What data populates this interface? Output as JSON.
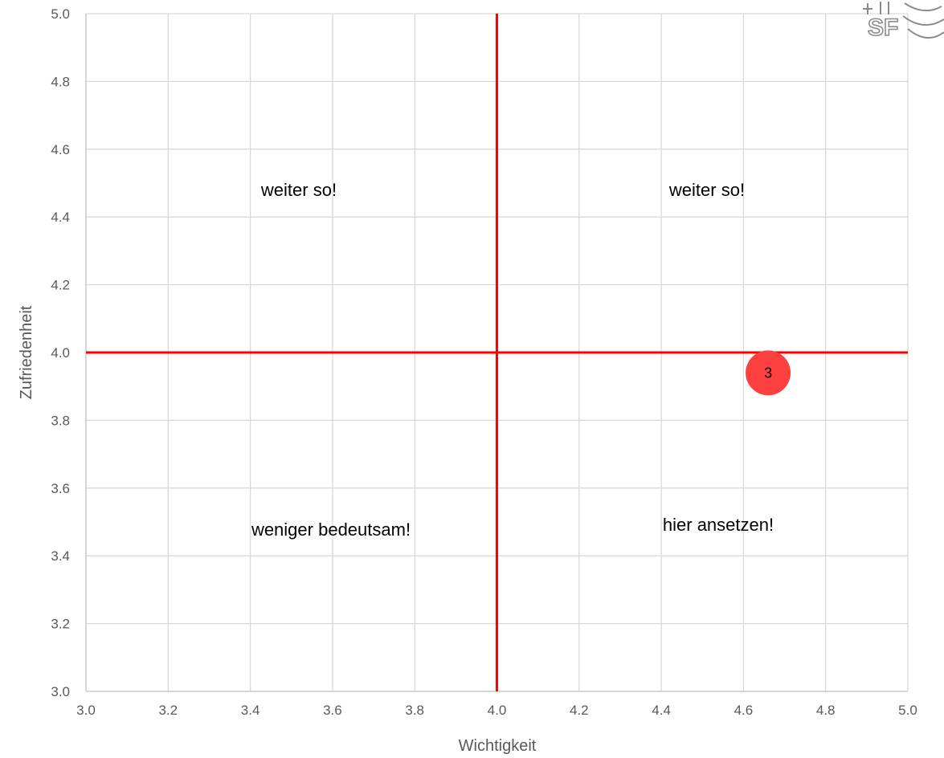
{
  "chart_data": {
    "type": "scatter",
    "xlabel": "Wichtigkeit",
    "ylabel": "Zufriedenheit",
    "xlim": [
      3.0,
      5.0
    ],
    "ylim": [
      3.0,
      5.0
    ],
    "x_ticks": [
      "3.0",
      "3.2",
      "3.4",
      "3.6",
      "3.8",
      "4.0",
      "4.2",
      "4.4",
      "4.6",
      "4.8",
      "5.0"
    ],
    "y_ticks": [
      "3.0",
      "3.2",
      "3.4",
      "3.6",
      "3.8",
      "4.0",
      "4.2",
      "4.4",
      "4.6",
      "4.8",
      "5.0"
    ],
    "grid": true,
    "reference_lines": {
      "x": 4.0,
      "y": 4.0,
      "color": "#ff0000"
    },
    "quadrant_labels": {
      "top_left": "weiter so!",
      "top_right": "weiter so!",
      "bottom_left": "weniger bedeutsam!",
      "bottom_right": "hier ansetzen!"
    },
    "points": [
      {
        "x": 4.66,
        "y": 3.94,
        "label": "3",
        "color": "#ff4040"
      }
    ]
  },
  "colors": {
    "grid": "#d9d9d9",
    "axis": "#bfbfbf",
    "reference": "#ff0000",
    "point": "#ff4040"
  },
  "logo_text": "SF"
}
